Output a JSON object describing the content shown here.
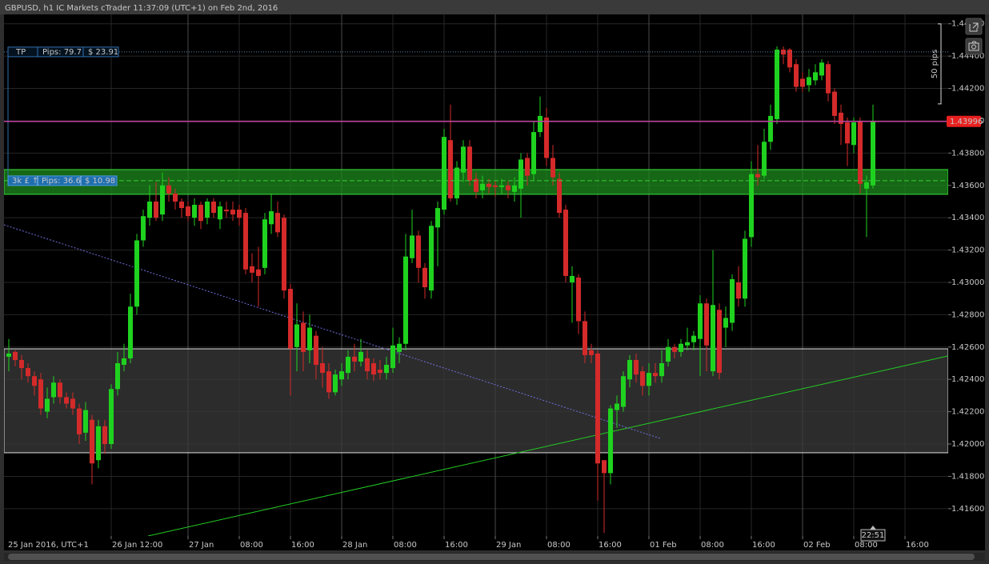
{
  "chart_data": {
    "type": "candlestick",
    "title": "GBPUSD, h1 IC Markets cTrader 11:37:09 (UTC+1) on Feb 2nd, 2016",
    "x_start_label": "25 Jan 2016, UTC+1",
    "up_color": "#1fd21f",
    "down_color": "#d42a2a",
    "xlim": [
      -0.75,
      146.75
    ],
    "ylim": [
      1.41431,
      1.44658
    ],
    "grid": true,
    "xticks": [
      {
        "value": 16,
        "label": "26 Jan 12:00"
      },
      {
        "value": 28,
        "label": "27 Jan"
      },
      {
        "value": 36,
        "label": "08:00"
      },
      {
        "value": 44,
        "label": "16:00"
      },
      {
        "value": 52,
        "label": "28 Jan"
      },
      {
        "value": 60,
        "label": "08:00"
      },
      {
        "value": 68,
        "label": "16:00"
      },
      {
        "value": 76,
        "label": "29 Jan"
      },
      {
        "value": 84,
        "label": "08:00"
      },
      {
        "value": 92,
        "label": "16:00"
      },
      {
        "value": 100,
        "label": "01 Feb"
      },
      {
        "value": 108,
        "label": "08:00"
      },
      {
        "value": 116,
        "label": "16:00"
      },
      {
        "value": 124,
        "label": "02 Feb"
      },
      {
        "value": 132,
        "label": "08:00"
      },
      {
        "value": 140,
        "label": "16:00"
      }
    ],
    "yticks": [
      {
        "value": 1.416,
        "label": "1.41600"
      },
      {
        "value": 1.418,
        "label": "1.41800"
      },
      {
        "value": 1.42,
        "label": "1.42000"
      },
      {
        "value": 1.422,
        "label": "1.42200"
      },
      {
        "value": 1.424,
        "label": "1.42400"
      },
      {
        "value": 1.426,
        "label": "1.42600"
      },
      {
        "value": 1.428,
        "label": "1.42800"
      },
      {
        "value": 1.43,
        "label": "1.43000"
      },
      {
        "value": 1.432,
        "label": "1.43200"
      },
      {
        "value": 1.434,
        "label": "1.43400"
      },
      {
        "value": 1.436,
        "label": "1.43600"
      },
      {
        "value": 1.438,
        "label": "1.43800"
      },
      {
        "value": 1.44,
        "label": "1.44000"
      },
      {
        "value": 1.442,
        "label": "1.44200"
      },
      {
        "value": 1.444,
        "label": "1.44400"
      },
      {
        "value": 1.446,
        "label": "1.44600"
      }
    ],
    "ohlc": {
      "open": [
        1.4254,
        1.4257,
        1.4252,
        1.4247,
        1.4242,
        1.424,
        1.422,
        1.4229,
        1.4238,
        1.4229,
        1.4228,
        1.4222,
        1.4207,
        1.4215,
        1.419,
        1.4211,
        1.42,
        1.4234,
        1.4249,
        1.4253,
        1.4285,
        1.4326,
        1.434,
        1.435,
        1.4342,
        1.436,
        1.4355,
        1.435,
        1.4347,
        1.434,
        1.4348,
        1.434,
        1.435,
        1.4339,
        1.4345,
        1.4345,
        1.4345,
        1.4343,
        1.431,
        1.4308,
        1.4309,
        1.4336,
        1.4343,
        1.434,
        1.4296,
        1.426,
        1.4275,
        1.4258,
        1.4267,
        1.425,
        1.4245,
        1.4232,
        1.424,
        1.4244,
        1.4254,
        1.4251,
        1.4253,
        1.425,
        1.4246,
        1.4244,
        1.4247,
        1.4257,
        1.4262,
        1.4315,
        1.4329,
        1.4309,
        1.4295,
        1.4334,
        1.4345,
        1.4388,
        1.4352,
        1.4368,
        1.4384,
        1.4364,
        1.4357,
        1.4361,
        1.436,
        1.4359,
        1.436,
        1.4356,
        1.4358,
        1.4377,
        1.4367,
        1.4393,
        1.4402,
        1.4377,
        1.4364,
        1.4345,
        1.43,
        1.4303,
        1.4276,
        1.4258,
        1.4256,
        1.419,
        1.4182,
        1.4221,
        1.4223,
        1.424,
        1.4252,
        1.4245,
        1.4236,
        1.4244,
        1.4242,
        1.4251,
        1.426,
        1.4257,
        1.4261,
        1.4263,
        1.4265,
        1.4287,
        1.4245,
        1.4283,
        1.4272,
        1.4275,
        1.43,
        1.429,
        1.4328,
        1.4367,
        1.4366,
        1.4387,
        1.4401,
        1.4444,
        1.4444,
        1.4435,
        1.4426,
        1.4422,
        1.4425,
        1.4428,
        1.4435,
        1.4418,
        1.4405,
        1.4399,
        1.4385,
        1.44,
        1.4358,
        1.436
      ],
      "high": [
        1.4265,
        1.4258,
        1.4255,
        1.425,
        1.4245,
        1.4244,
        1.4235,
        1.4242,
        1.424,
        1.4232,
        1.4232,
        1.4225,
        1.4226,
        1.4218,
        1.4215,
        1.4215,
        1.4237,
        1.4257,
        1.4262,
        1.4293,
        1.433,
        1.4345,
        1.436,
        1.4362,
        1.4368,
        1.4365,
        1.4358,
        1.4352,
        1.435,
        1.4352,
        1.435,
        1.4352,
        1.4352,
        1.435,
        1.435,
        1.435,
        1.4348,
        1.4346,
        1.4318,
        1.4322,
        1.4343,
        1.4355,
        1.435,
        1.4342,
        1.4299,
        1.4287,
        1.4282,
        1.428,
        1.427,
        1.426,
        1.425,
        1.4246,
        1.425,
        1.4258,
        1.4262,
        1.4265,
        1.4258,
        1.4253,
        1.4252,
        1.4254,
        1.4272,
        1.4266,
        1.433,
        1.4345,
        1.4332,
        1.4312,
        1.4338,
        1.435,
        1.4395,
        1.441,
        1.4375,
        1.4388,
        1.4388,
        1.4368,
        1.4366,
        1.4364,
        1.4363,
        1.4364,
        1.4363,
        1.4365,
        1.438,
        1.438,
        1.44,
        1.4415,
        1.4408,
        1.4385,
        1.4368,
        1.4348,
        1.431,
        1.4305,
        1.4282,
        1.4262,
        1.4258,
        1.419,
        1.4224,
        1.423,
        1.4245,
        1.4255,
        1.4256,
        1.4248,
        1.425,
        1.425,
        1.4258,
        1.4265,
        1.4262,
        1.4265,
        1.4272,
        1.427,
        1.4292,
        1.429,
        1.432,
        1.4287,
        1.4285,
        1.4305,
        1.431,
        1.4332,
        1.4375,
        1.4385,
        1.4395,
        1.441,
        1.4446,
        1.4446,
        1.4445,
        1.4438,
        1.443,
        1.4432,
        1.4435,
        1.4438,
        1.4437,
        1.442,
        1.441,
        1.4402,
        1.4402,
        1.4402,
        1.4366,
        1.441
      ],
      "low": [
        1.4245,
        1.4248,
        1.424,
        1.4238,
        1.423,
        1.4218,
        1.4216,
        1.4225,
        1.4225,
        1.4222,
        1.4218,
        1.42,
        1.4202,
        1.4175,
        1.4185,
        1.4194,
        1.4197,
        1.423,
        1.4245,
        1.425,
        1.428,
        1.4322,
        1.4335,
        1.4338,
        1.4338,
        1.435,
        1.4345,
        1.434,
        1.4338,
        1.4335,
        1.4333,
        1.4336,
        1.434,
        1.4333,
        1.434,
        1.4338,
        1.4335,
        1.4305,
        1.43,
        1.4285,
        1.4305,
        1.433,
        1.4328,
        1.429,
        1.423,
        1.4245,
        1.4245,
        1.425,
        1.424,
        1.4235,
        1.4228,
        1.423,
        1.4236,
        1.424,
        1.4245,
        1.4248,
        1.424,
        1.4239,
        1.424,
        1.424,
        1.4244,
        1.425,
        1.4258,
        1.4312,
        1.43,
        1.429,
        1.429,
        1.431,
        1.4342,
        1.435,
        1.4348,
        1.4362,
        1.436,
        1.4352,
        1.4352,
        1.4355,
        1.4353,
        1.4355,
        1.4352,
        1.435,
        1.434,
        1.436,
        1.4363,
        1.439,
        1.4372,
        1.436,
        1.434,
        1.43,
        1.4275,
        1.4268,
        1.425,
        1.425,
        1.4165,
        1.4145,
        1.4175,
        1.421,
        1.422,
        1.4235,
        1.4238,
        1.423,
        1.423,
        1.4238,
        1.4238,
        1.4248,
        1.4253,
        1.4254,
        1.4258,
        1.4258,
        1.4242,
        1.4245,
        1.4242,
        1.424,
        1.426,
        1.427,
        1.4285,
        1.4285,
        1.4322,
        1.436,
        1.4364,
        1.4382,
        1.4398,
        1.4435,
        1.443,
        1.4418,
        1.4418,
        1.4418,
        1.4422,
        1.4425,
        1.4412,
        1.4398,
        1.4385,
        1.4372,
        1.438,
        1.4355,
        1.4328,
        1.4358
      ],
      "close": [
        1.4256,
        1.4252,
        1.4247,
        1.4242,
        1.4236,
        1.4222,
        1.4228,
        1.4238,
        1.4229,
        1.4225,
        1.4222,
        1.4206,
        1.4221,
        1.4188,
        1.4211,
        1.42,
        1.4234,
        1.425,
        1.4253,
        1.4285,
        1.4326,
        1.4341,
        1.435,
        1.434,
        1.436,
        1.4355,
        1.435,
        1.4346,
        1.4341,
        1.4348,
        1.4338,
        1.435,
        1.4343,
        1.4347,
        1.4344,
        1.4342,
        1.434,
        1.4308,
        1.4306,
        1.4304,
        1.4339,
        1.4344,
        1.4331,
        1.4295,
        1.4259,
        1.4274,
        1.4257,
        1.4272,
        1.4249,
        1.4244,
        1.4232,
        1.4243,
        1.4245,
        1.4254,
        1.4251,
        1.4257,
        1.4245,
        1.4243,
        1.4244,
        1.4249,
        1.4261,
        1.4262,
        1.4316,
        1.4329,
        1.4309,
        1.4297,
        1.4335,
        1.4346,
        1.439,
        1.4352,
        1.4371,
        1.4384,
        1.4363,
        1.4356,
        1.4361,
        1.4359,
        1.4359,
        1.436,
        1.4357,
        1.436,
        1.4376,
        1.4366,
        1.4393,
        1.4403,
        1.4377,
        1.4365,
        1.4343,
        1.4304,
        1.4304,
        1.4276,
        1.4255,
        1.4255,
        1.4188,
        1.4182,
        1.4222,
        1.4225,
        1.4242,
        1.4252,
        1.4243,
        1.4236,
        1.4244,
        1.4242,
        1.425,
        1.426,
        1.4257,
        1.4262,
        1.4263,
        1.4267,
        1.4287,
        1.4261,
        1.4286,
        1.4244,
        1.4278,
        1.4302,
        1.429,
        1.4327,
        1.4367,
        1.4365,
        1.4387,
        1.4403,
        1.4444,
        1.4441,
        1.4433,
        1.4421,
        1.4421,
        1.4427,
        1.443,
        1.4436,
        1.4417,
        1.4403,
        1.4398,
        1.4386,
        1.4399,
        1.4361,
        1.4362,
        1.43996
      ]
    },
    "current_price": 1.43996,
    "current_price_color": "#e8201f",
    "tp_level": {
      "value": 1.44426,
      "labels": [
        "TP",
        "Pips: 79.7",
        "$ 23.91"
      ]
    },
    "position": {
      "value": 1.43629,
      "labels": [
        "3k £ ↑",
        "Pips: 36.6",
        "$ 10.98"
      ]
    },
    "zones": [
      {
        "from": 1.43545,
        "to": 1.43698,
        "color": "#1d8a1d"
      },
      {
        "from": 1.41946,
        "to": 1.42589,
        "color": "#3b3b3b"
      }
    ],
    "trendlines": [
      {
        "x": [
          21.75,
          146.75
        ],
        "y": [
          1.41431,
          1.42545
        ],
        "color": "#22cc22",
        "dashed": false
      },
      {
        "x": [
          -0.75,
          101.75
        ],
        "y": [
          1.43356,
          1.42035
        ],
        "color": "#6f6fe0",
        "dashed": true
      }
    ],
    "ruler": {
      "label": "50 pips",
      "from": 1.44104,
      "to": 1.44599
    },
    "countdown": "22:51"
  }
}
